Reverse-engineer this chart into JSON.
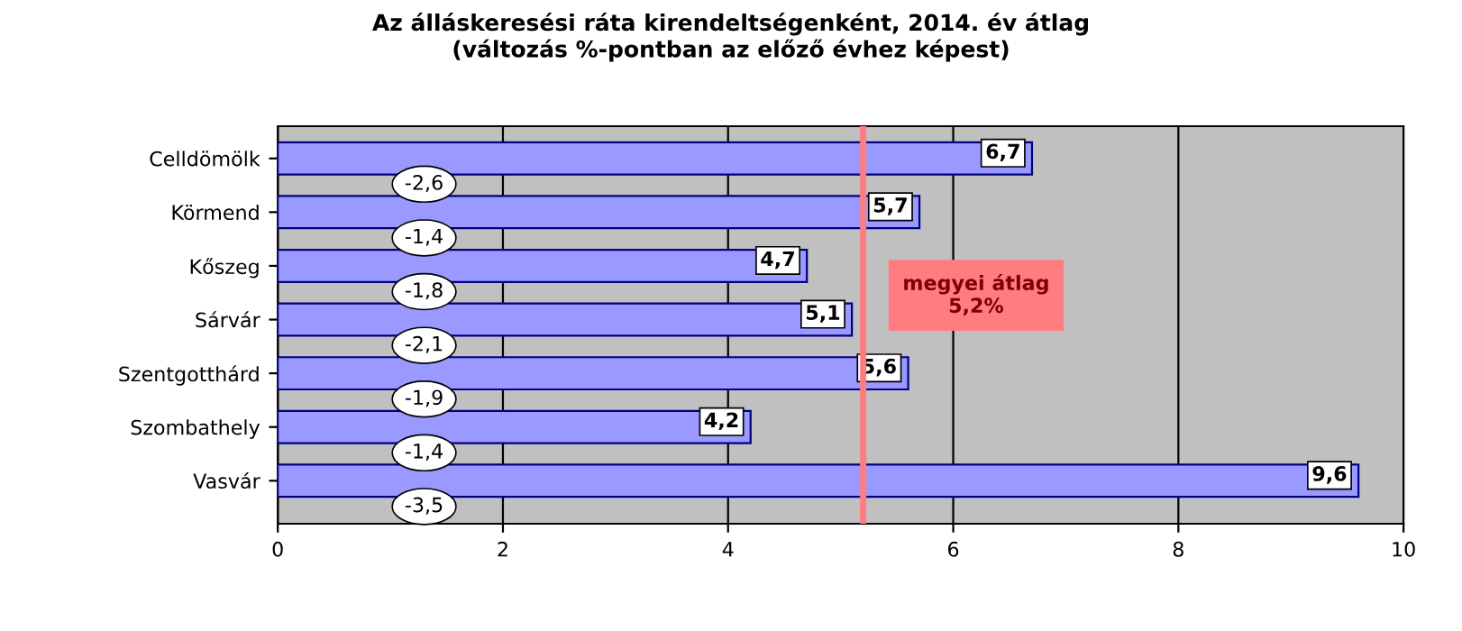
{
  "chart_data": {
    "type": "bar",
    "orientation": "horizontal",
    "title": "Az álláskeresési ráta kirendeltségenként, 2014. év átlag\n(változás %-pontban az előző évhez képest)",
    "categories": [
      "Celldömölk",
      "Körmend",
      "Kőszeg",
      "Sárvár",
      "Szentgotthárd",
      "Szombathely",
      "Vasvár"
    ],
    "values": [
      6.7,
      5.7,
      4.7,
      5.1,
      5.6,
      4.2,
      9.6
    ],
    "value_labels": [
      "6,7",
      "5,7",
      "4,7",
      "5,1",
      "5,6",
      "4,2",
      "9,6"
    ],
    "color": "#9999ff",
    "xlim": [
      0,
      10
    ],
    "xticks": [
      0,
      2,
      4,
      6,
      8,
      10
    ],
    "grid": "x",
    "ref_lines": [
      {
        "axis": "x",
        "value": 5.2,
        "label": "megyei átlag\n5,2%",
        "color": "#ff7c80"
      }
    ],
    "annotations": [
      "-2,6",
      "-1,4",
      "-1,8",
      "-2,1",
      "-1,9",
      "-1,4",
      "-3,5"
    ]
  }
}
